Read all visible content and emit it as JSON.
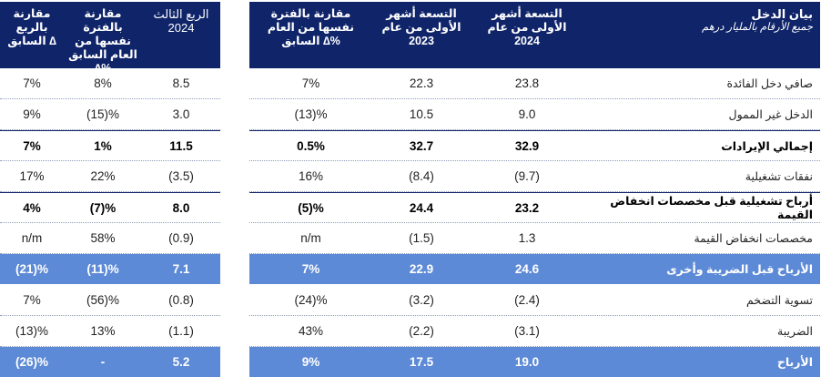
{
  "right_header": {
    "label_title": "بيان الدخل",
    "label_sub": "جميع الأرقام بالمليار درهم",
    "col_9m_2024": "التسعة أشهر الأولى من عام 2024",
    "col_9m_2023": "التسعة أشهر الأولى من عام 2023",
    "col_yoy": "مقارنة بالفترة نفسها من العام السابق ∆%"
  },
  "left_header": {
    "col_q3_2024": "الربع الثالث 2024",
    "col_yoy": "مقارنة بالفترة نفسها من العام السابق ∆%",
    "col_qoq": "مقارنة بالربع السابق ∆"
  },
  "rows": [
    {
      "label": "صافي دخل الفائدة",
      "m9_2024": "23.8",
      "m9_2023": "22.3",
      "yoy_9m": "7%",
      "q3_2024": "8.5",
      "yoy_q3": "8%",
      "qoq": "7%"
    },
    {
      "label": "الدخل غير الممول",
      "m9_2024": "9.0",
      "m9_2023": "10.5",
      "yoy_9m": "(13)%",
      "q3_2024": "3.0",
      "yoy_q3": "(15)%",
      "qoq": "9%"
    },
    {
      "label": "إجمالي الإيرادات",
      "m9_2024": "32.9",
      "m9_2023": "32.7",
      "yoy_9m": "0.5%",
      "q3_2024": "11.5",
      "yoy_q3": "1%",
      "qoq": "7%"
    },
    {
      "label": "نفقات تشغيلية",
      "m9_2024": "(9.7)",
      "m9_2023": "(8.4)",
      "yoy_9m": "16%",
      "q3_2024": "(3.5)",
      "yoy_q3": "22%",
      "qoq": "17%"
    },
    {
      "label": "أرباح تشغيلية قبل مخصصات انخفاض القيمة",
      "m9_2024": "23.2",
      "m9_2023": "24.4",
      "yoy_9m": "(5)%",
      "q3_2024": "8.0",
      "yoy_q3": "(7)%",
      "qoq": "4%"
    },
    {
      "label": "مخصصات انخفاض القيمة",
      "m9_2024": "1.3",
      "m9_2023": "(1.5)",
      "yoy_9m": "n/m",
      "q3_2024": "(0.9)",
      "yoy_q3": "58%",
      "qoq": "n/m"
    },
    {
      "label": "الأرباح قبل الضريبة وأخرى",
      "m9_2024": "24.6",
      "m9_2023": "22.9",
      "yoy_9m": "7%",
      "q3_2024": "7.1",
      "yoy_q3": "(11)%",
      "qoq": "(21)%"
    },
    {
      "label": "تسوية التضخم",
      "m9_2024": "(2.4)",
      "m9_2023": "(3.2)",
      "yoy_9m": "(24)%",
      "q3_2024": "(0.8)",
      "yoy_q3": "(56)%",
      "qoq": "7%"
    },
    {
      "label": "الضريبة",
      "m9_2024": "(3.1)",
      "m9_2023": "(2.2)",
      "yoy_9m": "43%",
      "q3_2024": "(1.1)",
      "yoy_q3": "13%",
      "qoq": "(13)%"
    },
    {
      "label": "الأرباح",
      "m9_2024": "19.0",
      "m9_2023": "17.5",
      "yoy_9m": "9%",
      "q3_2024": "5.2",
      "yoy_q3": "-",
      "qoq": "(26)%"
    }
  ],
  "colors": {
    "header_bg": "#0f2469",
    "highlight_bg": "#5d8ad6"
  }
}
